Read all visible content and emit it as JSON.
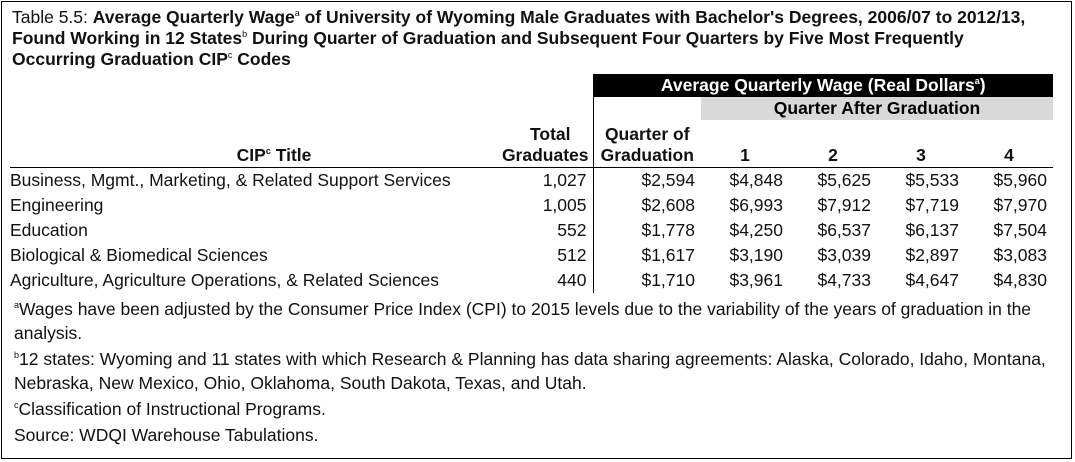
{
  "title": {
    "label": "Table 5.5:",
    "part1": "Average Quarterly Wage",
    "sup_a": "a",
    "part2": "of University of Wyoming Male Graduates with Bachelor's Degrees, 2006/07 to 2012/13, Found Working in 12 States",
    "sup_b": "b",
    "part3": "During Quarter of Graduation and Subsequent Four Quarters by Five Most Frequently Occurring Graduation CIP",
    "sup_c": "c",
    "part4": "Codes"
  },
  "header": {
    "band": "Average Quarterly Wage (Real Dollars",
    "band_sup": "a",
    "band_close": ")",
    "subband": "Quarter After Graduation",
    "cip_title_pre": "CIP",
    "cip_title_sup": "c",
    "cip_title_post": "Title",
    "total_line1": "Total",
    "total_line2": "Graduates",
    "q0_line1": "Quarter of",
    "q0_line2": "Graduation",
    "q1": "1",
    "q2": "2",
    "q3": "3",
    "q4": "4"
  },
  "rows": [
    {
      "title": "Business, Mgmt., Marketing, & Related Support Services",
      "total": "1,027",
      "q0": "$2,594",
      "q1": "$4,848",
      "q2": "$5,625",
      "q3": "$5,533",
      "q4": "$5,960"
    },
    {
      "title": "Engineering",
      "total": "1,005",
      "q0": "$2,608",
      "q1": "$6,993",
      "q2": "$7,912",
      "q3": "$7,719",
      "q4": "$7,970"
    },
    {
      "title": "Education",
      "total": "552",
      "q0": "$1,778",
      "q1": "$4,250",
      "q2": "$6,537",
      "q3": "$6,137",
      "q4": "$7,504"
    },
    {
      "title": "Biological & Biomedical Sciences",
      "total": "512",
      "q0": "$1,617",
      "q1": "$3,190",
      "q2": "$3,039",
      "q3": "$2,897",
      "q4": "$3,083"
    },
    {
      "title": "Agriculture, Agriculture Operations, & Related Sciences",
      "total": "440",
      "q0": "$1,710",
      "q1": "$3,961",
      "q2": "$4,733",
      "q3": "$4,647",
      "q4": "$4,830"
    }
  ],
  "notes": {
    "a_sup": "a",
    "a_text": "Wages have been adjusted by the Consumer Price Index (CPI) to 2015 levels due to the variability of the years of graduation in the analysis.",
    "b_sup": "b",
    "b_text": "12 states: Wyoming and 11 states with which Research & Planning has data sharing agreements: Alaska, Colorado, Idaho, Montana, Nebraska, New Mexico, Ohio, Oklahoma, South Dakota, Texas, and Utah.",
    "c_sup": "c",
    "c_text": "Classification of Instructional Programs.",
    "source": "Source: WDQI Warehouse Tabulations."
  }
}
